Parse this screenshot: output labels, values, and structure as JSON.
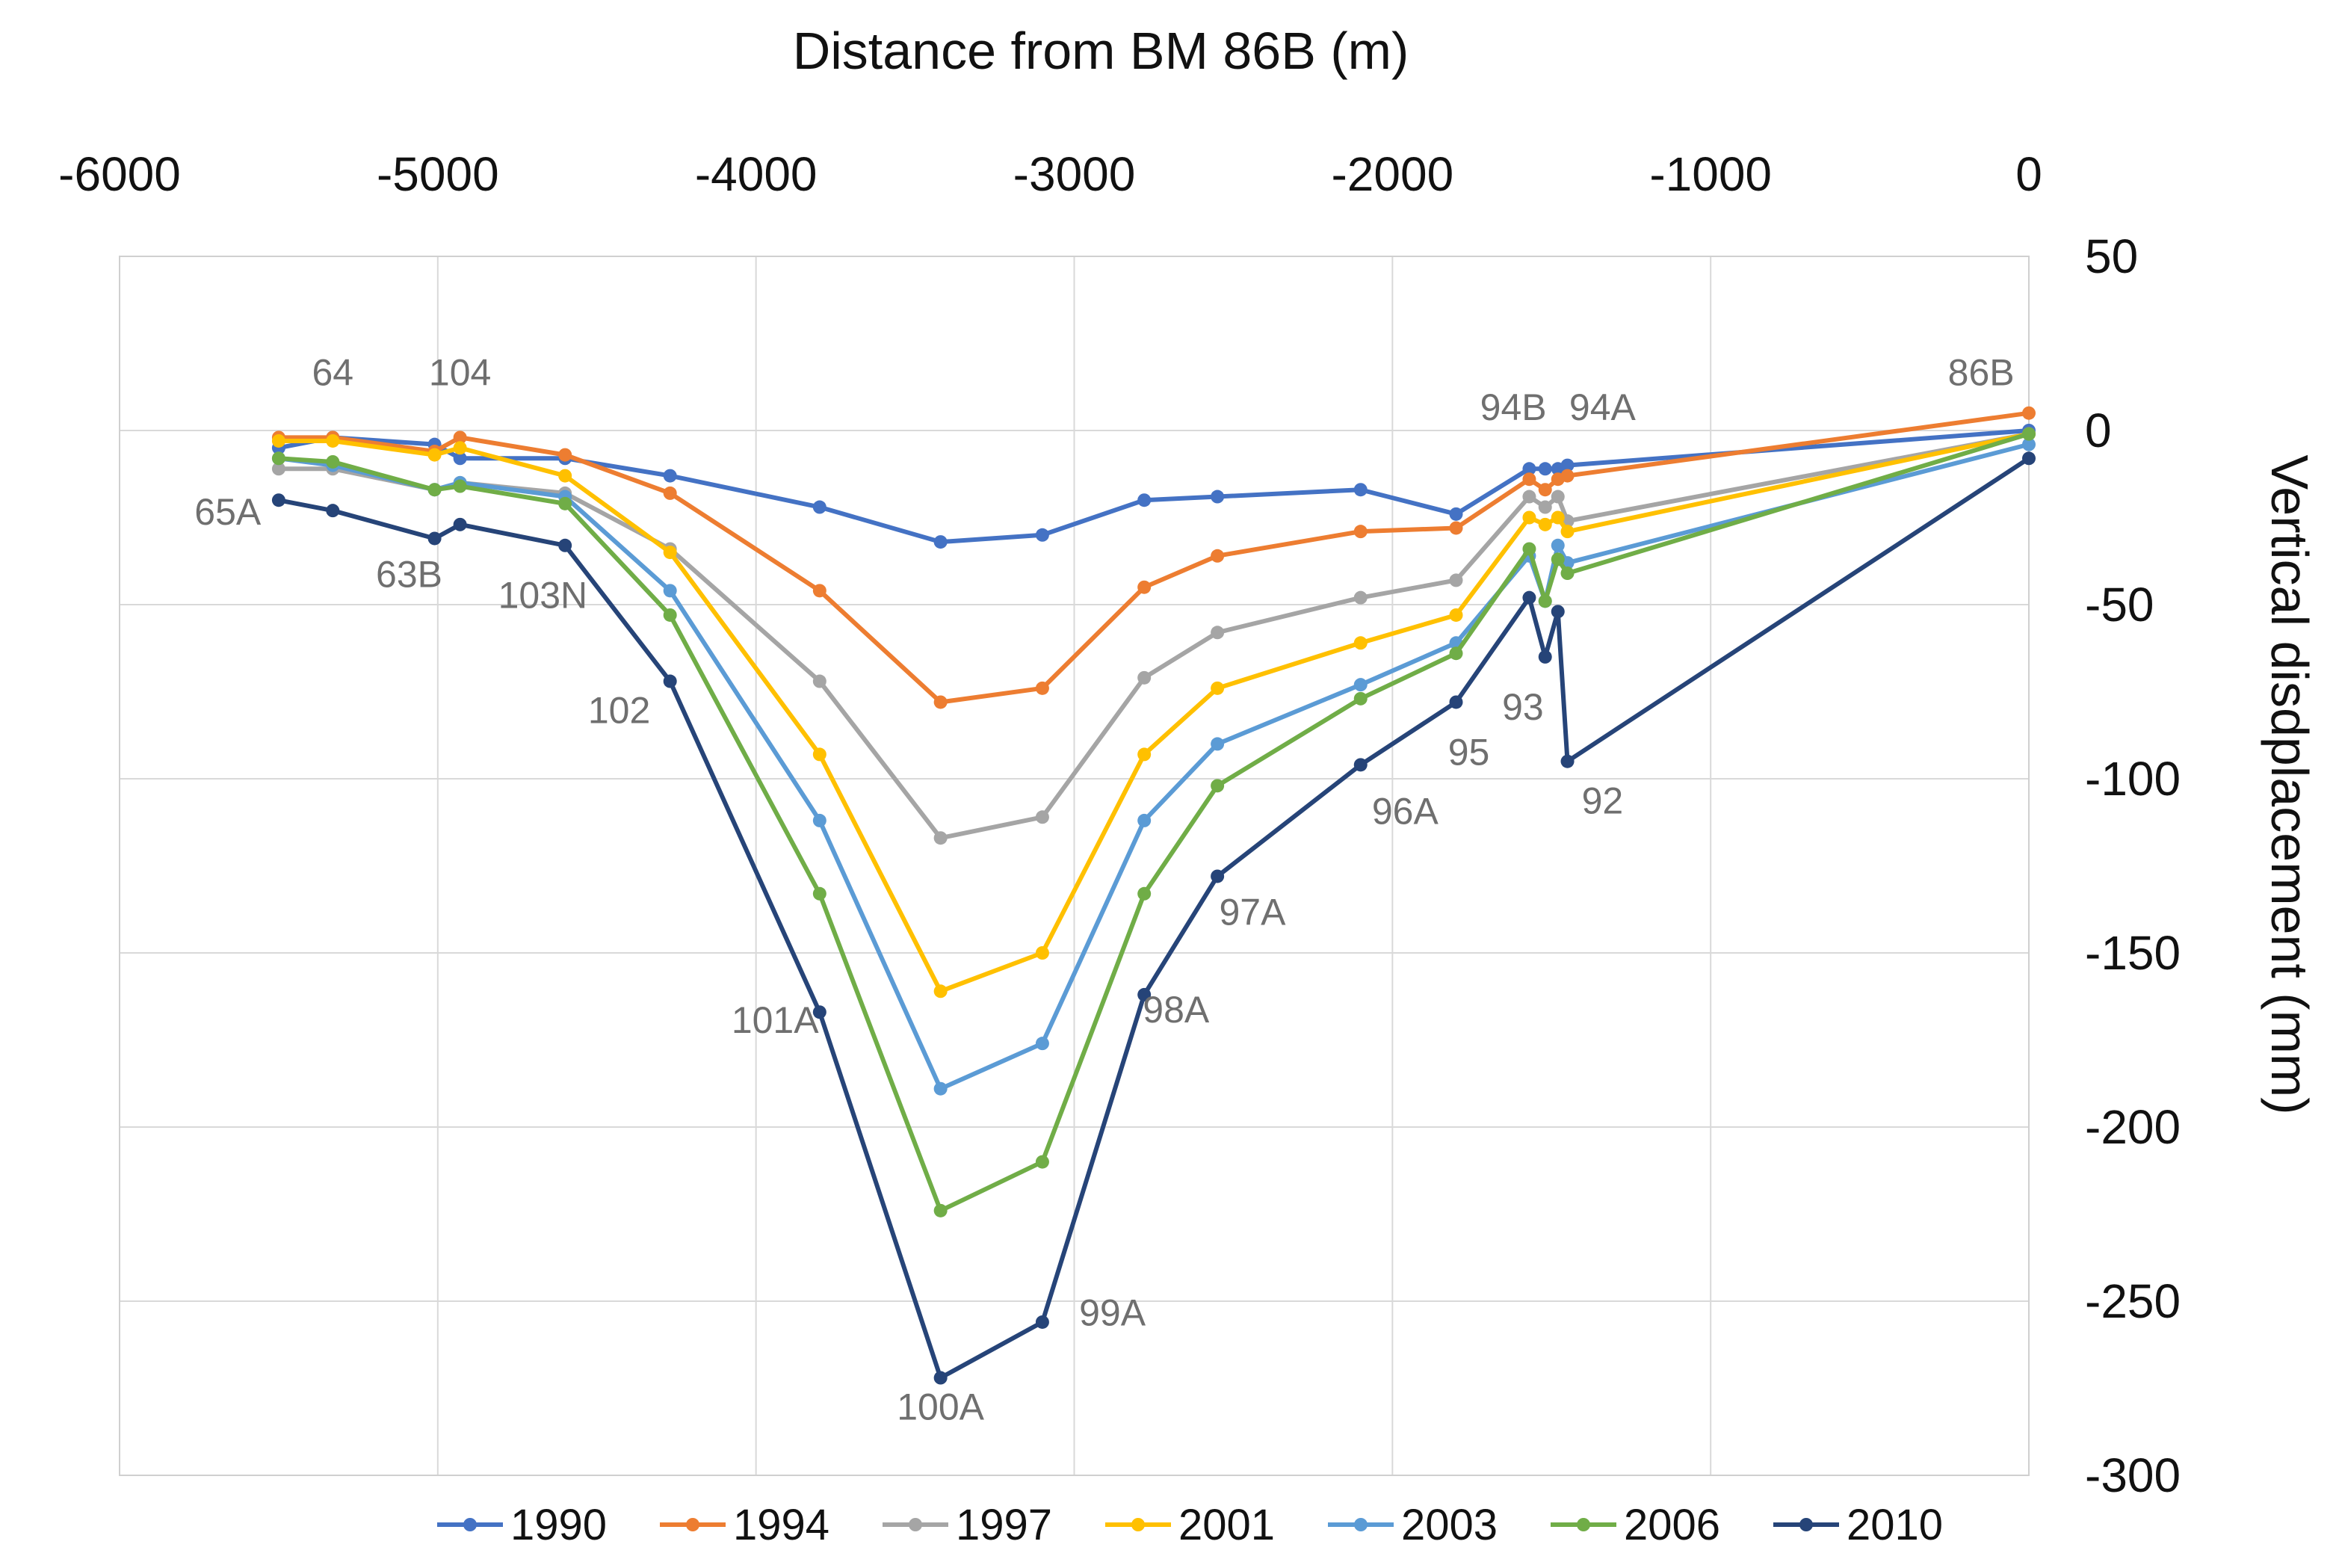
{
  "chart_data": {
    "type": "line",
    "xlabel": "Distance from BM 86B (m)",
    "ylabel": "Vertical disdplacement (mm)",
    "xlim": [
      -6000,
      0
    ],
    "ylim": [
      -300,
      50
    ],
    "xticks": [
      -6000,
      -5000,
      -4000,
      -3000,
      -2000,
      -1000,
      0
    ],
    "yticks": [
      50,
      0,
      -50,
      -100,
      -150,
      -200,
      -250,
      -300
    ],
    "grid": true,
    "legend_position": "bottom",
    "x": [
      -5500,
      -5330,
      -5010,
      -4930,
      -4600,
      -4270,
      -3800,
      -3420,
      -3100,
      -2780,
      -2550,
      -2100,
      -1800,
      -1570,
      -1520,
      -1480,
      -1450,
      0
    ],
    "series": [
      {
        "name": "1990",
        "color": "#4472C4",
        "values": [
          -5,
          -2,
          -4,
          -8,
          -8,
          -13,
          -22,
          -32,
          -30,
          -20,
          -19,
          -17,
          -24,
          -11,
          -11,
          -11,
          -10,
          0
        ]
      },
      {
        "name": "1994",
        "color": "#ED7D31",
        "values": [
          -2,
          -2,
          -6,
          -2,
          -7,
          -18,
          -46,
          -78,
          -74,
          -45,
          -36,
          -29,
          -28,
          -14,
          -17,
          -14,
          -13,
          5
        ]
      },
      {
        "name": "1997",
        "color": "#A5A5A5",
        "values": [
          -11,
          -11,
          -17,
          -15,
          -18,
          -34,
          -72,
          -117,
          -111,
          -71,
          -58,
          -48,
          -43,
          -19,
          -22,
          -19,
          -26,
          -1
        ]
      },
      {
        "name": "2001",
        "color": "#FFC000",
        "values": [
          -3,
          -3,
          -7,
          -5,
          -13,
          -35,
          -93,
          -161,
          -150,
          -93,
          -74,
          -61,
          -53,
          -25,
          -27,
          -25,
          -29,
          -1
        ]
      },
      {
        "name": "2003",
        "color": "#5B9BD5",
        "values": [
          -8,
          -10,
          -17,
          -15,
          -19,
          -46,
          -112,
          -189,
          -176,
          -112,
          -90,
          -73,
          -61,
          -36,
          -49,
          -33,
          -38,
          -4
        ]
      },
      {
        "name": "2006",
        "color": "#70AD47",
        "values": [
          -8,
          -9,
          -17,
          -16,
          -21,
          -53,
          -133,
          -224,
          -210,
          -133,
          -102,
          -77,
          -64,
          -34,
          -49,
          -37,
          -41,
          -1
        ]
      },
      {
        "name": "2010",
        "color": "#264478",
        "values": [
          -20,
          -23,
          -31,
          -27,
          -33,
          -72,
          -167,
          -272,
          -256,
          -162,
          -128,
          -96,
          -78,
          -48,
          -65,
          -52,
          -95,
          -8
        ]
      }
    ],
    "annotations": [
      {
        "text": "64",
        "x": -5330,
        "y": 13
      },
      {
        "text": "104",
        "x": -4930,
        "y": 13
      },
      {
        "text": "65A",
        "x": -5660,
        "y": -27
      },
      {
        "text": "63B",
        "x": -5090,
        "y": -45
      },
      {
        "text": "103N",
        "x": -4670,
        "y": -51
      },
      {
        "text": "102",
        "x": -4430,
        "y": -84
      },
      {
        "text": "101A",
        "x": -3940,
        "y": -173
      },
      {
        "text": "100A",
        "x": -3420,
        "y": -284
      },
      {
        "text": "99A",
        "x": -2880,
        "y": -257
      },
      {
        "text": "98A",
        "x": -2680,
        "y": -170
      },
      {
        "text": "97A",
        "x": -2440,
        "y": -142
      },
      {
        "text": "96A",
        "x": -1960,
        "y": -113
      },
      {
        "text": "95",
        "x": -1760,
        "y": -96
      },
      {
        "text": "93",
        "x": -1590,
        "y": -83
      },
      {
        "text": "92",
        "x": -1340,
        "y": -110
      },
      {
        "text": "94B",
        "x": -1620,
        "y": 3
      },
      {
        "text": "94A",
        "x": -1340,
        "y": 3
      },
      {
        "text": "86B",
        "x": -150,
        "y": 13
      }
    ]
  }
}
